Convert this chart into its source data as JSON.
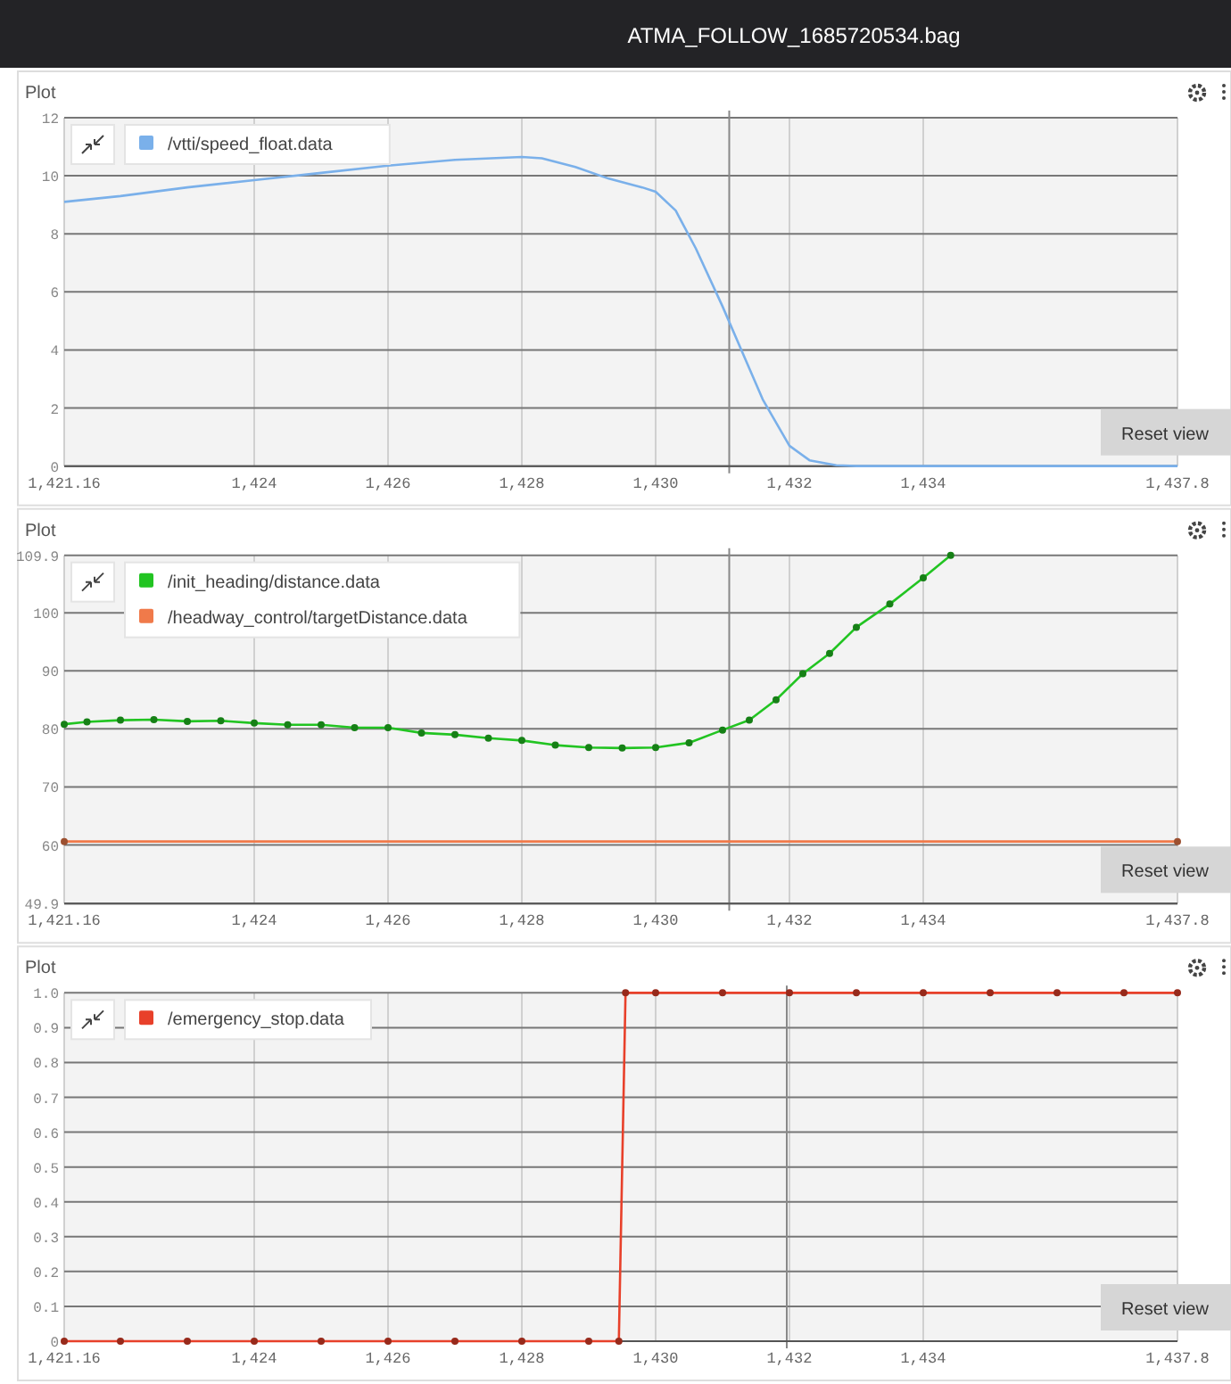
{
  "chart_data": [
    {
      "type": "other",
      "title": "ATMA_FOLLOW_1685720534.bag"
    },
    {
      "type": "line",
      "title": "Plot",
      "legend": "top left",
      "grid": true,
      "marker": "none",
      "annotations": [
        "Reset view"
      ],
      "xlim": [
        1421.16,
        1437.8
      ],
      "xticks": [
        {
          "value": 1421.16,
          "label": "1,421.16"
        },
        {
          "value": 1424,
          "label": "1,424"
        },
        {
          "value": 1426,
          "label": "1,426"
        },
        {
          "value": 1428,
          "label": "1,428"
        },
        {
          "value": 1430,
          "label": "1,430"
        },
        {
          "value": 1432,
          "label": "1,432"
        },
        {
          "value": 1434,
          "label": "1,434"
        },
        {
          "value": 1437.8,
          "label": "1,437.8"
        }
      ],
      "ylim": [
        0,
        12
      ],
      "yticks": [
        0,
        2,
        4,
        6,
        8,
        10,
        12
      ],
      "ref_lines": [
        {
          "axis": "x",
          "value": 1431.1,
          "color": "#888888"
        }
      ],
      "series": [
        {
          "name": "/vtti/speed_float.data",
          "color": "#7ab0ea",
          "x": [
            1421.16,
            1422,
            1423,
            1424,
            1425,
            1426,
            1427,
            1428,
            1428.3,
            1428.8,
            1429.3,
            1429.8,
            1430,
            1430.3,
            1430.6,
            1431,
            1431.3,
            1431.6,
            1432,
            1432.3,
            1432.7,
            1433,
            1437.8
          ],
          "values": [
            9.1,
            9.3,
            9.6,
            9.85,
            10.1,
            10.35,
            10.55,
            10.65,
            10.6,
            10.3,
            9.9,
            9.6,
            9.45,
            8.8,
            7.5,
            5.5,
            3.9,
            2.3,
            0.7,
            0.2,
            0.03,
            0,
            0
          ]
        }
      ]
    },
    {
      "type": "line",
      "title": "Plot",
      "legend": "top left",
      "grid": true,
      "marker": "circle",
      "annotations": [
        "Reset view"
      ],
      "xlim": [
        1421.16,
        1437.8
      ],
      "xticks": [
        {
          "value": 1421.16,
          "label": "1,421.16"
        },
        {
          "value": 1424,
          "label": "1,424"
        },
        {
          "value": 1426,
          "label": "1,426"
        },
        {
          "value": 1428,
          "label": "1,428"
        },
        {
          "value": 1430,
          "label": "1,430"
        },
        {
          "value": 1432,
          "label": "1,432"
        },
        {
          "value": 1434,
          "label": "1,434"
        },
        {
          "value": 1437.8,
          "label": "1,437.8"
        }
      ],
      "ylim": [
        49.9,
        109.9
      ],
      "yticks": [
        49.9,
        60,
        70,
        80,
        90,
        100,
        109.9
      ],
      "ref_lines": [
        {
          "axis": "x",
          "value": 1431.1,
          "color": "#888888"
        }
      ],
      "series": [
        {
          "name": "/init_heading/distance.data",
          "color": "#22c422",
          "x": [
            1421.16,
            1421.5,
            1422,
            1422.5,
            1423,
            1423.5,
            1424,
            1424.5,
            1425,
            1425.5,
            1426,
            1426.5,
            1427,
            1427.5,
            1428,
            1428.5,
            1429,
            1429.5,
            1430,
            1430.5,
            1431,
            1431.4,
            1431.8,
            1432.2,
            1432.6,
            1433,
            1433.5,
            1434,
            1434.41
          ],
          "values": [
            80.8,
            81.2,
            81.5,
            81.6,
            81.3,
            81.4,
            81,
            80.7,
            80.7,
            80.2,
            80.2,
            79.3,
            79,
            78.4,
            78,
            77.2,
            76.8,
            76.7,
            76.8,
            77.6,
            79.8,
            81.5,
            85,
            89.5,
            93,
            97.5,
            101.5,
            106,
            109.9
          ]
        },
        {
          "name": "/headway_control/targetDistance.data",
          "color": "#f07a4a",
          "x": [
            1421.16,
            1437.8
          ],
          "values": [
            60.6,
            60.6
          ]
        }
      ]
    },
    {
      "type": "line",
      "title": "Plot",
      "legend": "top left",
      "grid": true,
      "marker": "circle",
      "annotations": [
        "Reset view"
      ],
      "xlim": [
        1421.16,
        1437.8
      ],
      "xticks": [
        {
          "value": 1421.16,
          "label": "1,421.16"
        },
        {
          "value": 1424,
          "label": "1,424"
        },
        {
          "value": 1426,
          "label": "1,426"
        },
        {
          "value": 1428,
          "label": "1,428"
        },
        {
          "value": 1430,
          "label": "1,430"
        },
        {
          "value": 1432,
          "label": "1,432"
        },
        {
          "value": 1434,
          "label": "1,434"
        },
        {
          "value": 1437.8,
          "label": "1,437.8"
        }
      ],
      "ylim": [
        0,
        1
      ],
      "yticks": [
        0,
        0.1,
        0.2,
        0.3,
        0.4,
        0.5,
        0.6,
        0.7,
        0.8,
        0.9,
        {
          "value": 1,
          "label": "1.0"
        }
      ],
      "ref_lines": [
        {
          "axis": "x",
          "value": 1431.96,
          "color": "#888888"
        }
      ],
      "series": [
        {
          "name": "/emergency_stop.data",
          "color": "#e8402a",
          "x": [
            1421.16,
            1422,
            1423,
            1424,
            1425,
            1426,
            1427,
            1428,
            1429,
            1429.45,
            1429.55,
            1430,
            1431,
            1432,
            1433,
            1434,
            1435,
            1436,
            1437,
            1437.8
          ],
          "values": [
            0,
            0,
            0,
            0,
            0,
            0,
            0,
            0,
            0,
            0,
            1,
            1,
            1,
            1,
            1,
            1,
            1,
            1,
            1,
            1
          ]
        }
      ]
    }
  ]
}
